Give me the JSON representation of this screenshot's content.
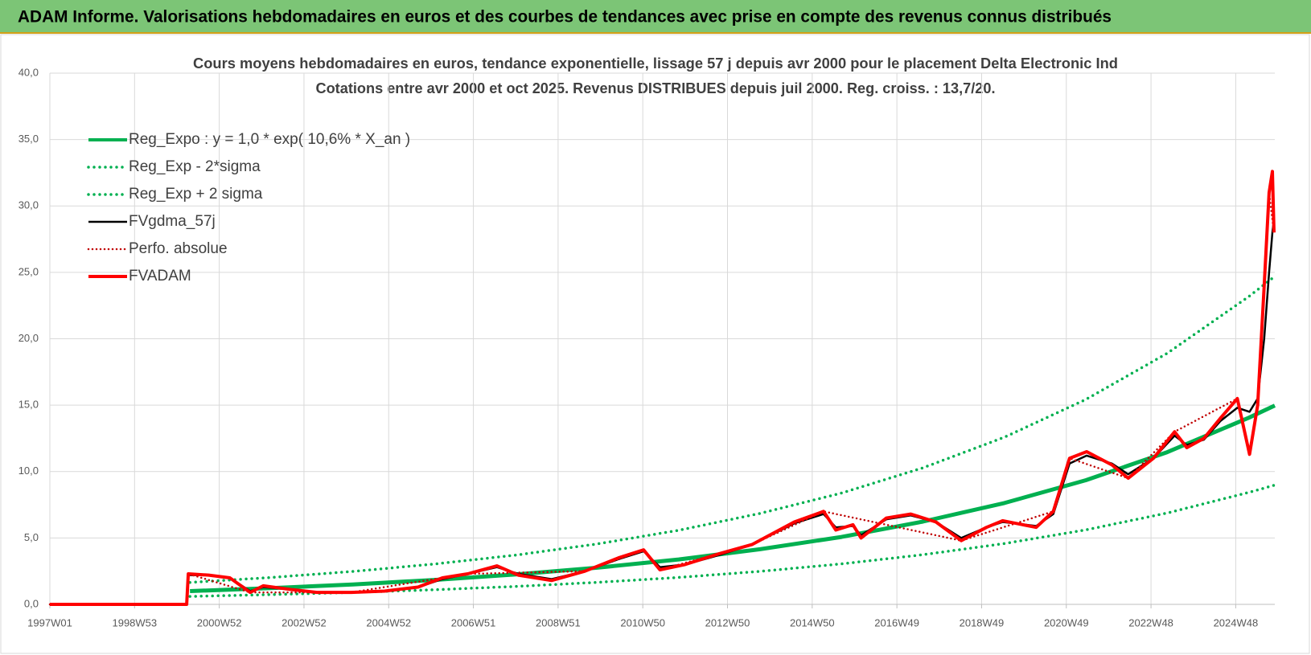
{
  "header": {
    "title": "ADAM Informe. Valorisations hebdomadaires en euros et des courbes de tendances avec prise en compte des revenus connus distribués"
  },
  "chart_data": {
    "type": "line",
    "title": "Cours moyens hebdomadaires en euros, tendance exponentielle, lissage 57 j depuis avr 2000 pour le placement Delta Electronic Ind",
    "subtitle": "Cotations entre avr 2000 et oct 2025. Revenus DISTRIBUES depuis juil 2000. Reg. croiss. : 13,7/20.",
    "xlim": [
      0,
      1504
    ],
    "xticks": [
      {
        "value": 0,
        "label": "1997W01"
      },
      {
        "value": 104,
        "label": "1998W53"
      },
      {
        "value": 208,
        "label": "2000W52"
      },
      {
        "value": 312,
        "label": "2002W52"
      },
      {
        "value": 416,
        "label": "2004W52"
      },
      {
        "value": 520,
        "label": "2006W51"
      },
      {
        "value": 624,
        "label": "2008W51"
      },
      {
        "value": 728,
        "label": "2010W50"
      },
      {
        "value": 832,
        "label": "2012W50"
      },
      {
        "value": 936,
        "label": "2014W50"
      },
      {
        "value": 1040,
        "label": "2016W49"
      },
      {
        "value": 1144,
        "label": "2018W49"
      },
      {
        "value": 1248,
        "label": "2020W49"
      },
      {
        "value": 1352,
        "label": "2022W48"
      },
      {
        "value": 1456,
        "label": "2024W48"
      }
    ],
    "ylim": [
      0,
      40
    ],
    "yticks": [
      {
        "value": 0,
        "label": "0,0"
      },
      {
        "value": 5,
        "label": "5,0"
      },
      {
        "value": 10,
        "label": "10,0"
      },
      {
        "value": 15,
        "label": "15,0"
      },
      {
        "value": 20,
        "label": "20,0"
      },
      {
        "value": 25,
        "label": "25,0"
      },
      {
        "value": 30,
        "label": "30,0"
      },
      {
        "value": 35,
        "label": "35,0"
      },
      {
        "value": 40,
        "label": "40,0"
      }
    ],
    "grid": true,
    "legend": "top-left",
    "series": [
      {
        "name": "Reg_Expo : y = 1,0 * exp( 10,6% *  X_an )",
        "color": "#00b050",
        "style": "solid",
        "width": 5,
        "x": [
          172,
          272,
          372,
          472,
          572,
          672,
          772,
          872,
          972,
          1072,
          1172,
          1272,
          1372,
          1472,
          1504
        ],
        "values": [
          1.0,
          1.23,
          1.5,
          1.84,
          2.25,
          2.76,
          3.38,
          4.15,
          5.08,
          6.23,
          7.63,
          9.35,
          11.46,
          14.05,
          14.97
        ]
      },
      {
        "name": "Reg_Exp - 2*sigma",
        "color": "#00b050",
        "style": "dotted",
        "width": 3.5,
        "x": [
          172,
          272,
          372,
          472,
          572,
          672,
          772,
          872,
          972,
          1072,
          1172,
          1272,
          1372,
          1472,
          1504
        ],
        "values": [
          0.6,
          0.74,
          0.9,
          1.1,
          1.35,
          1.66,
          2.03,
          2.49,
          3.05,
          3.74,
          4.58,
          5.61,
          6.88,
          8.43,
          8.98
        ]
      },
      {
        "name": "Reg_Exp + 2 sigma",
        "color": "#00b050",
        "style": "dotted",
        "width": 3.5,
        "x": [
          172,
          272,
          372,
          472,
          572,
          672,
          772,
          872,
          972,
          1072,
          1172,
          1272,
          1372,
          1472,
          1504
        ],
        "values": [
          1.65,
          2.03,
          2.48,
          3.04,
          3.71,
          4.55,
          5.58,
          6.85,
          8.38,
          10.28,
          12.59,
          15.43,
          18.91,
          23.18,
          24.7
        ]
      },
      {
        "name": "FVgdma_57j",
        "color": "#000000",
        "style": "solid",
        "width": 2.5,
        "x": [
          0,
          168,
          170,
          195,
          221,
          246,
          262,
          298,
          328,
          370,
          411,
          452,
          482,
          513,
          549,
          575,
          616,
          657,
          698,
          729,
          749,
          780,
          821,
          862,
          914,
          950,
          965,
          986,
          996,
          1027,
          1057,
          1088,
          1119,
          1150,
          1170,
          1211,
          1232,
          1252,
          1273,
          1304,
          1324,
          1355,
          1381,
          1396,
          1417,
          1437,
          1458,
          1473,
          1483,
          1491,
          1497,
          1501,
          1503
        ],
        "values": [
          0,
          0,
          2.2,
          2.2,
          2.0,
          1.0,
          1.3,
          1.1,
          0.9,
          0.9,
          1.0,
          1.3,
          1.9,
          2.3,
          2.8,
          2.3,
          1.9,
          2.5,
          3.4,
          4.0,
          2.8,
          3.0,
          3.7,
          4.5,
          6.1,
          6.8,
          5.8,
          5.9,
          5.2,
          6.4,
          6.7,
          6.2,
          5.0,
          5.8,
          6.2,
          5.9,
          6.8,
          10.6,
          11.2,
          10.6,
          9.8,
          11.0,
          12.7,
          12.0,
          12.4,
          13.8,
          14.8,
          14.5,
          15.5,
          20.0,
          25.0,
          28.0,
          29.0
        ]
      },
      {
        "name": "Perfo. absolue",
        "color": "#c00000",
        "style": "dotted",
        "width": 2.5,
        "x": [
          0,
          168,
          170,
          246,
          370,
          513,
          657,
          729,
          749,
          862,
          950,
          1119,
          1232,
          1252,
          1324,
          1381,
          1458,
          1473,
          1483,
          1497,
          1503
        ],
        "values": [
          0,
          0,
          2.3,
          0.9,
          0.9,
          2.3,
          2.5,
          4.1,
          2.6,
          4.5,
          7.0,
          4.8,
          7.0,
          11.0,
          9.5,
          13.0,
          15.5,
          11.3,
          15.0,
          31.0,
          28.0
        ]
      },
      {
        "name": "FVADAM",
        "color": "#ff0000",
        "style": "solid",
        "width": 4,
        "x": [
          0,
          168,
          170,
          195,
          221,
          246,
          262,
          298,
          328,
          370,
          411,
          452,
          482,
          513,
          549,
          575,
          616,
          657,
          698,
          729,
          749,
          780,
          821,
          862,
          914,
          950,
          965,
          986,
          996,
          1027,
          1057,
          1088,
          1119,
          1150,
          1170,
          1211,
          1232,
          1252,
          1273,
          1304,
          1324,
          1355,
          1381,
          1396,
          1417,
          1437,
          1458,
          1473,
          1483,
          1491,
          1497,
          1501,
          1503
        ],
        "values": [
          0,
          0,
          2.3,
          2.2,
          2.0,
          0.9,
          1.4,
          1.1,
          0.9,
          0.9,
          1.0,
          1.3,
          2.0,
          2.3,
          2.9,
          2.2,
          1.8,
          2.5,
          3.5,
          4.1,
          2.6,
          3.0,
          3.8,
          4.5,
          6.2,
          7.0,
          5.6,
          6.0,
          5.0,
          6.5,
          6.8,
          6.2,
          4.8,
          5.8,
          6.3,
          5.8,
          7.0,
          11.0,
          11.5,
          10.5,
          9.5,
          11.0,
          13.0,
          11.8,
          12.5,
          14.0,
          15.5,
          11.3,
          15.0,
          24.0,
          31.0,
          32.6,
          28.0
        ]
      }
    ]
  }
}
